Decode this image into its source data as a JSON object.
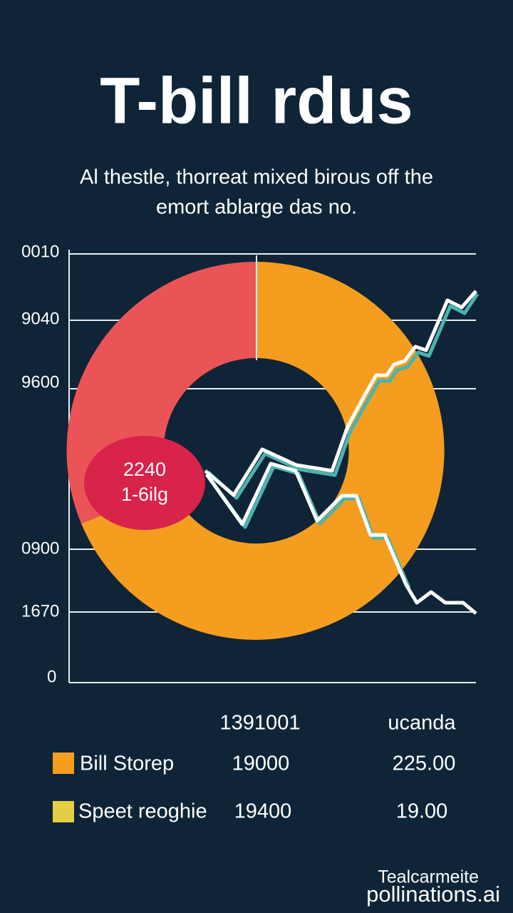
{
  "title": "T-bill rdus",
  "subtitle": [
    "Al thestle, thorreat mixed birous off the",
    "emort ablarge das no."
  ],
  "axis_labels": [
    "0010",
    "9040",
    "9600",
    "0900",
    "1670",
    "0"
  ],
  "callout": [
    "2240",
    "1-6ilg"
  ],
  "table": {
    "header": [
      "1391001",
      "ucanda"
    ],
    "rows": [
      [
        "Bill Storep",
        "19000",
        "225.00"
      ],
      [
        "Speet reoghie",
        "19400",
        "19.00"
      ]
    ]
  },
  "footer": [
    "Tealcarmeite",
    "pollinations.ai"
  ]
}
